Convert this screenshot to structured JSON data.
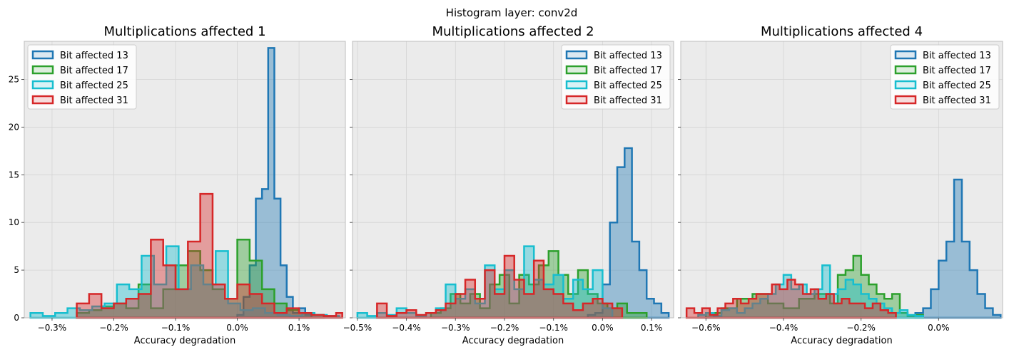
{
  "figure": {
    "suptitle": "Histogram layer: conv2d"
  },
  "colors": {
    "panel_bg": "#ebebeb",
    "grid": "#d4d4d4",
    "spine": "#bcbcbc",
    "text": "#000000"
  },
  "chart_data": [
    {
      "type": "histogram",
      "title": "Multiplications affected 1",
      "xlabel": "Accuracy degradation",
      "ylabel": "",
      "xlim": [
        -0.345,
        0.175
      ],
      "ylim": [
        0,
        29
      ],
      "grid": true,
      "legend_position": "upper-left",
      "x_ticks": [
        -0.3,
        -0.2,
        -0.1,
        0.0,
        0.1
      ],
      "x_tick_labels": [
        "−0.3%",
        "−0.2%",
        "−0.1%",
        "0.0%",
        "0.1%"
      ],
      "y_ticks": [
        0,
        5,
        10,
        15,
        20,
        25
      ],
      "y_tick_labels": [
        "0",
        "5",
        "10",
        "15",
        "20",
        "25"
      ],
      "series": [
        {
          "name": "Bit affected 13",
          "color": "#1f77b4",
          "edges": [
            0.0,
            0.01,
            0.02,
            0.03,
            0.04,
            0.05,
            0.06,
            0.07,
            0.08,
            0.09,
            0.1,
            0.11,
            0.12
          ],
          "counts": [
            0.3,
            2.2,
            5.5,
            12.5,
            13.5,
            28.3,
            12.5,
            5.5,
            2.2,
            0.5,
            1.0,
            0.3
          ]
        },
        {
          "name": "Bit affected 17",
          "color": "#2ca02c",
          "edges": [
            -0.26,
            -0.24,
            -0.22,
            -0.2,
            -0.18,
            -0.16,
            -0.14,
            -0.12,
            -0.1,
            -0.08,
            -0.06,
            -0.04,
            -0.02,
            0.0,
            0.02,
            0.04,
            0.06,
            0.08,
            0.1,
            0.12,
            0.14
          ],
          "counts": [
            0.5,
            0.8,
            1.2,
            1.5,
            1.0,
            3.5,
            1.0,
            3.0,
            5.5,
            7.0,
            5.0,
            3.0,
            2.0,
            8.2,
            6.0,
            3.0,
            1.5,
            0.8,
            0.5,
            0.3
          ]
        },
        {
          "name": "Bit affected 25",
          "color": "#17becf",
          "edges": [
            -0.335,
            -0.315,
            -0.295,
            -0.275,
            -0.255,
            -0.235,
            -0.215,
            -0.195,
            -0.175,
            -0.155,
            -0.135,
            -0.115,
            -0.095,
            -0.075,
            -0.055,
            -0.035,
            -0.015,
            0.005,
            0.025,
            0.045,
            0.065,
            0.085,
            0.105,
            0.125,
            0.145,
            0.165
          ],
          "counts": [
            0.5,
            0.2,
            0.5,
            1.0,
            0.8,
            1.2,
            1.5,
            3.5,
            3.0,
            6.5,
            3.5,
            7.5,
            3.0,
            5.5,
            3.5,
            7.0,
            1.5,
            0.8,
            1.0,
            0.5,
            0.3,
            0.2,
            0.5,
            0.3,
            0.2
          ]
        },
        {
          "name": "Bit affected 31",
          "color": "#d62728",
          "edges": [
            -0.26,
            -0.24,
            -0.22,
            -0.2,
            -0.18,
            -0.16,
            -0.14,
            -0.12,
            -0.1,
            -0.08,
            -0.06,
            -0.04,
            -0.02,
            0.0,
            0.02,
            0.04,
            0.06,
            0.08,
            0.1,
            0.12,
            0.14,
            0.16,
            0.17
          ],
          "counts": [
            1.5,
            2.5,
            1.0,
            1.5,
            2.0,
            2.5,
            8.2,
            5.5,
            3.0,
            8.0,
            13.0,
            3.5,
            2.0,
            3.5,
            2.5,
            1.5,
            0.5,
            1.0,
            0.5,
            0.3,
            0.2,
            0.5
          ]
        }
      ]
    },
    {
      "type": "histogram",
      "title": "Multiplications affected 2",
      "xlabel": "Accuracy degradation",
      "ylabel": "",
      "xlim": [
        -0.51,
        0.145
      ],
      "ylim": [
        0,
        29
      ],
      "grid": true,
      "legend_position": "upper-right",
      "x_ticks": [
        -0.5,
        -0.4,
        -0.3,
        -0.2,
        -0.1,
        0.0,
        0.1
      ],
      "x_tick_labels": [
        "−0.5%",
        "−0.4%",
        "−0.3%",
        "−0.2%",
        "−0.1%",
        "0.0%",
        "0.1%"
      ],
      "y_ticks": [
        0,
        5,
        10,
        15,
        20,
        25
      ],
      "y_tick_labels": [],
      "series": [
        {
          "name": "Bit affected 13",
          "color": "#1f77b4",
          "edges": [
            -0.03,
            -0.015,
            0.0,
            0.015,
            0.03,
            0.045,
            0.06,
            0.075,
            0.09,
            0.105,
            0.12,
            0.135
          ],
          "counts": [
            0.3,
            0.5,
            3.5,
            10.0,
            15.8,
            17.8,
            8.0,
            5.0,
            2.0,
            1.5,
            0.5
          ]
        },
        {
          "name": "Bit affected 17",
          "color": "#2ca02c",
          "edges": [
            -0.35,
            -0.33,
            -0.31,
            -0.29,
            -0.27,
            -0.25,
            -0.23,
            -0.21,
            -0.19,
            -0.17,
            -0.15,
            -0.13,
            -0.11,
            -0.09,
            -0.07,
            -0.05,
            -0.03,
            -0.01,
            0.01,
            0.03,
            0.05,
            0.07,
            0.09
          ],
          "counts": [
            0.5,
            1.0,
            2.5,
            1.5,
            2.5,
            1.0,
            3.5,
            4.5,
            1.5,
            4.5,
            3.5,
            5.5,
            7.0,
            4.5,
            2.5,
            5.0,
            2.5,
            1.5,
            1.0,
            1.5,
            0.5,
            0.5
          ]
        },
        {
          "name": "Bit affected 25",
          "color": "#17becf",
          "edges": [
            -0.5,
            -0.48,
            -0.46,
            -0.44,
            -0.42,
            -0.4,
            -0.38,
            -0.36,
            -0.34,
            -0.32,
            -0.3,
            -0.28,
            -0.26,
            -0.24,
            -0.22,
            -0.2,
            -0.18,
            -0.16,
            -0.14,
            -0.12,
            -0.1,
            -0.08,
            -0.06,
            -0.04,
            -0.02,
            0.0,
            0.02
          ],
          "counts": [
            0.5,
            0.2,
            0.5,
            0.3,
            1.0,
            0.5,
            0.2,
            0.5,
            1.0,
            3.5,
            2.0,
            3.0,
            1.5,
            5.5,
            3.0,
            5.0,
            3.0,
            7.5,
            4.0,
            3.5,
            4.5,
            2.0,
            4.0,
            3.0,
            5.0,
            1.0
          ]
        },
        {
          "name": "Bit affected 31",
          "color": "#d62728",
          "edges": [
            -0.46,
            -0.44,
            -0.42,
            -0.4,
            -0.38,
            -0.36,
            -0.34,
            -0.32,
            -0.3,
            -0.28,
            -0.26,
            -0.24,
            -0.22,
            -0.2,
            -0.18,
            -0.16,
            -0.14,
            -0.12,
            -0.1,
            -0.08,
            -0.06,
            -0.04,
            -0.02,
            0.0,
            0.02,
            0.04
          ],
          "counts": [
            1.5,
            0.2,
            0.5,
            0.8,
            0.3,
            0.5,
            0.8,
            1.5,
            2.5,
            4.0,
            2.0,
            5.0,
            2.5,
            6.5,
            4.0,
            2.5,
            6.0,
            3.0,
            2.5,
            1.5,
            0.8,
            1.5,
            2.0,
            1.5,
            1.0
          ]
        }
      ]
    },
    {
      "type": "histogram",
      "title": "Multiplications affected 4",
      "xlabel": "Accuracy degradation",
      "ylabel": "",
      "xlim": [
        -0.665,
        0.165
      ],
      "ylim": [
        0,
        29
      ],
      "grid": true,
      "legend_position": "upper-right",
      "x_ticks": [
        -0.6,
        -0.4,
        -0.2,
        0.0
      ],
      "x_tick_labels": [
        "−0.6%",
        "−0.4%",
        "−0.2%",
        "0.0%"
      ],
      "y_ticks": [
        0,
        5,
        10,
        15,
        20,
        25
      ],
      "y_tick_labels": [],
      "series": [
        {
          "name": "Bit affected 13",
          "color": "#1f77b4",
          "edges": [
            -0.06,
            -0.04,
            -0.02,
            0.0,
            0.02,
            0.04,
            0.06,
            0.08,
            0.1,
            0.12,
            0.14,
            0.16
          ],
          "counts": [
            0.5,
            1.0,
            3.0,
            6.0,
            8.0,
            14.5,
            8.0,
            5.0,
            2.5,
            1.0,
            0.3
          ]
        },
        {
          "name": "Bit affected 17",
          "color": "#2ca02c",
          "edges": [
            -0.6,
            -0.56,
            -0.52,
            -0.48,
            -0.44,
            -0.4,
            -0.36,
            -0.32,
            -0.28,
            -0.26,
            -0.24,
            -0.22,
            -0.2,
            -0.18,
            -0.16,
            -0.14,
            -0.12,
            -0.1,
            -0.08,
            -0.06,
            -0.04
          ],
          "counts": [
            0.5,
            1.0,
            2.0,
            2.5,
            1.5,
            1.0,
            2.0,
            2.5,
            1.5,
            4.5,
            5.0,
            6.5,
            4.5,
            3.5,
            2.5,
            2.0,
            2.5,
            0.5,
            0.2,
            0.3
          ]
        },
        {
          "name": "Bit affected 25",
          "color": "#17becf",
          "edges": [
            -0.62,
            -0.6,
            -0.58,
            -0.56,
            -0.54,
            -0.52,
            -0.5,
            -0.48,
            -0.46,
            -0.44,
            -0.42,
            -0.4,
            -0.38,
            -0.36,
            -0.34,
            -0.32,
            -0.3,
            -0.28,
            -0.26,
            -0.24,
            -0.22,
            -0.2,
            -0.18,
            -0.16,
            -0.14,
            -0.12,
            -0.1,
            -0.08,
            -0.06,
            -0.04
          ],
          "counts": [
            0.3,
            0.5,
            0.2,
            0.8,
            1.0,
            0.5,
            1.0,
            1.5,
            2.0,
            2.5,
            3.5,
            4.5,
            3.0,
            3.5,
            2.5,
            3.0,
            5.5,
            2.5,
            3.0,
            4.0,
            3.5,
            2.5,
            2.0,
            1.5,
            1.0,
            0.5,
            0.8,
            0.3,
            0.2
          ]
        },
        {
          "name": "Bit affected 31",
          "color": "#d62728",
          "edges": [
            -0.65,
            -0.63,
            -0.61,
            -0.59,
            -0.57,
            -0.55,
            -0.53,
            -0.51,
            -0.49,
            -0.47,
            -0.45,
            -0.43,
            -0.41,
            -0.39,
            -0.37,
            -0.35,
            -0.33,
            -0.31,
            -0.29,
            -0.27,
            -0.25,
            -0.23,
            -0.21,
            -0.19,
            -0.17,
            -0.15,
            -0.13,
            -0.11
          ],
          "counts": [
            1.0,
            0.5,
            1.0,
            0.3,
            1.0,
            1.5,
            2.0,
            1.5,
            2.0,
            2.5,
            2.5,
            3.5,
            3.0,
            4.0,
            3.5,
            2.5,
            3.0,
            2.0,
            2.5,
            1.5,
            2.0,
            1.5,
            1.5,
            1.0,
            1.5,
            0.8,
            0.5
          ]
        }
      ]
    }
  ]
}
